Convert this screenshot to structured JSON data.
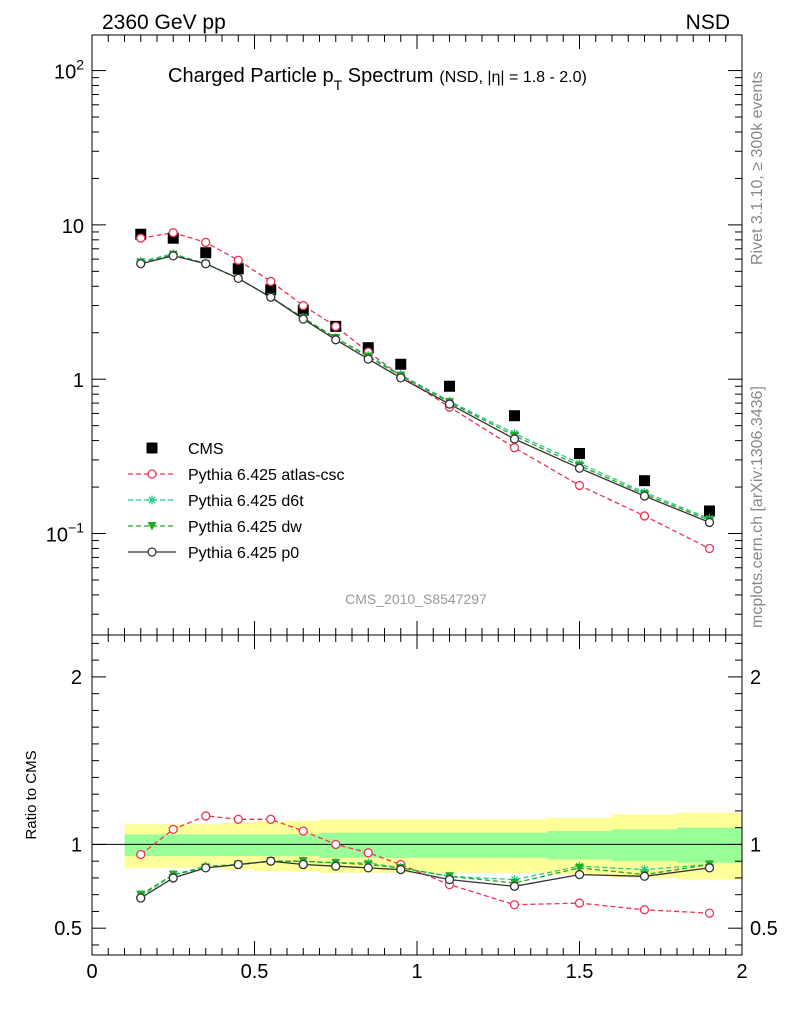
{
  "header": {
    "left": "2360 GeV pp",
    "right": "NSD"
  },
  "title": {
    "main": "Charged Particle p",
    "sub": "T",
    "main2": " Spectrum",
    "small": "(NSD, |η| = 1.8 - 2.0)"
  },
  "side_labels": {
    "rivet": "Rivet 3.1.10, ≥ 300k events",
    "mcplots": "mcplots.cern.ch [arXiv:1306.3436]"
  },
  "watermark": "CMS_2010_S8547297",
  "ratio_ylabel": "Ratio to CMS",
  "colors": {
    "cms": "#000000",
    "atlas": "#ee3355",
    "d6t": "#22cc88",
    "dw": "#22aa22",
    "p0": "#333333",
    "band_outer": "#ffff99",
    "band_inner": "#99ff99"
  },
  "chart_data": [
    {
      "type": "scatter",
      "panel": "main",
      "yscale": "log",
      "xlim": [
        0,
        2
      ],
      "ylim": [
        0.022,
        170
      ],
      "yticks": [
        {
          "v": 0.1,
          "b": "10",
          "e": "−1"
        },
        {
          "v": 1,
          "b": "1",
          "e": ""
        },
        {
          "v": 10,
          "b": "10",
          "e": ""
        },
        {
          "v": 100,
          "b": "10",
          "e": "2"
        }
      ],
      "x": [
        0.15,
        0.25,
        0.35,
        0.45,
        0.55,
        0.65,
        0.75,
        0.85,
        0.95,
        1.1,
        1.3,
        1.5,
        1.7,
        1.9
      ],
      "series": [
        {
          "name": "CMS",
          "marker": "square",
          "line": "none",
          "values": [
            8.7,
            8.2,
            6.6,
            5.2,
            3.8,
            2.8,
            2.2,
            1.6,
            1.25,
            0.9,
            0.58,
            0.33,
            0.22,
            0.14
          ]
        },
        {
          "name": "Pythia 6.425 atlas-csc",
          "marker": "circle-open",
          "line": "dashed",
          "values": [
            8.2,
            8.9,
            7.7,
            5.9,
            4.3,
            3.0,
            2.2,
            1.5,
            1.05,
            0.66,
            0.36,
            0.205,
            0.13,
            0.08
          ]
        },
        {
          "name": "Pythia 6.425 d6t",
          "marker": "star",
          "line": "dashed",
          "values": [
            5.8,
            6.5,
            5.6,
            4.5,
            3.4,
            2.5,
            1.85,
            1.42,
            1.07,
            0.72,
            0.445,
            0.285,
            0.185,
            0.125
          ]
        },
        {
          "name": "Pythia 6.425 dw",
          "marker": "triangle-down",
          "line": "dashed",
          "values": [
            5.7,
            6.4,
            5.6,
            4.5,
            3.4,
            2.5,
            1.85,
            1.4,
            1.05,
            0.71,
            0.43,
            0.275,
            0.18,
            0.122
          ]
        },
        {
          "name": "Pythia 6.425 p0",
          "marker": "circle-open",
          "line": "solid",
          "values": [
            5.6,
            6.3,
            5.6,
            4.5,
            3.4,
            2.45,
            1.8,
            1.35,
            1.02,
            0.69,
            0.41,
            0.265,
            0.175,
            0.118
          ]
        }
      ]
    },
    {
      "type": "line",
      "panel": "ratio",
      "ylabel": "Ratio to CMS",
      "xlim": [
        0,
        2
      ],
      "ylim": [
        0.34,
        2.25
      ],
      "yticks": [
        0.5,
        1,
        2
      ],
      "xticks": [
        0,
        0.5,
        1,
        1.5,
        2
      ],
      "x": [
        0.15,
        0.25,
        0.35,
        0.45,
        0.55,
        0.65,
        0.75,
        0.85,
        0.95,
        1.1,
        1.3,
        1.5,
        1.7,
        1.9
      ],
      "bands": {
        "edges": [
          0.1,
          0.2,
          0.3,
          0.4,
          0.5,
          0.6,
          0.7,
          0.8,
          0.9,
          1.0,
          1.2,
          1.4,
          1.6,
          1.8,
          2.0
        ],
        "outer": [
          [
            0.86,
            1.12
          ],
          [
            0.86,
            1.12
          ],
          [
            0.86,
            1.12
          ],
          [
            0.85,
            1.13
          ],
          [
            0.84,
            1.14
          ],
          [
            0.84,
            1.14
          ],
          [
            0.83,
            1.15
          ],
          [
            0.83,
            1.15
          ],
          [
            0.83,
            1.15
          ],
          [
            0.83,
            1.15
          ],
          [
            0.83,
            1.15
          ],
          [
            0.82,
            1.16
          ],
          [
            0.8,
            1.18
          ],
          [
            0.79,
            1.19
          ]
        ],
        "inner": [
          [
            0.93,
            1.06
          ],
          [
            0.93,
            1.06
          ],
          [
            0.93,
            1.06
          ],
          [
            0.93,
            1.06
          ],
          [
            0.93,
            1.06
          ],
          [
            0.93,
            1.06
          ],
          [
            0.92,
            1.07
          ],
          [
            0.92,
            1.07
          ],
          [
            0.92,
            1.07
          ],
          [
            0.92,
            1.07
          ],
          [
            0.92,
            1.07
          ],
          [
            0.91,
            1.08
          ],
          [
            0.9,
            1.09
          ],
          [
            0.89,
            1.1
          ]
        ]
      },
      "series": [
        {
          "name": "Pythia 6.425 atlas-csc",
          "values": [
            0.94,
            1.09,
            1.17,
            1.15,
            1.15,
            1.08,
            1.0,
            0.95,
            0.88,
            0.76,
            0.64,
            0.65,
            0.61,
            0.59
          ]
        },
        {
          "name": "Pythia 6.425 d6t",
          "values": [
            0.69,
            0.82,
            0.87,
            0.88,
            0.9,
            0.9,
            0.89,
            0.89,
            0.86,
            0.81,
            0.79,
            0.87,
            0.85,
            0.88
          ]
        },
        {
          "name": "Pythia 6.425 dw",
          "values": [
            0.7,
            0.82,
            0.86,
            0.88,
            0.9,
            0.9,
            0.89,
            0.88,
            0.86,
            0.81,
            0.77,
            0.86,
            0.82,
            0.88
          ]
        },
        {
          "name": "Pythia 6.425 p0",
          "values": [
            0.68,
            0.8,
            0.86,
            0.88,
            0.9,
            0.88,
            0.87,
            0.86,
            0.85,
            0.79,
            0.75,
            0.82,
            0.81,
            0.86
          ]
        }
      ]
    }
  ]
}
